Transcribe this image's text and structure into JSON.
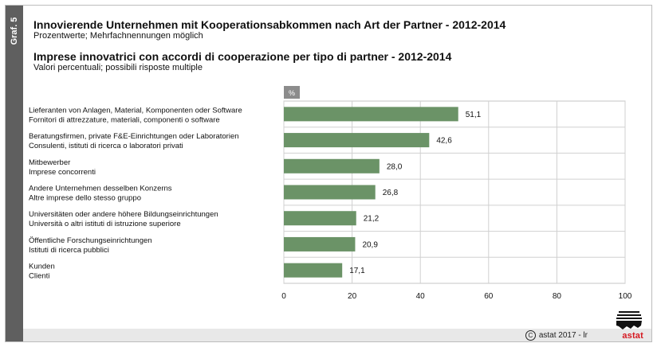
{
  "graph_label": "Graf. 5",
  "title_de": "Innovierende Unternehmen mit Kooperationsabkommen nach Art der Partner - 2012-2014",
  "subtitle_de": "Prozentwerte; Mehrfachnennungen möglich",
  "title_it": "Imprese innovatrici con accordi di cooperazione per tipo di partner - 2012-2014",
  "subtitle_it": "Valori percentuali; possibili risposte multiple",
  "footer": {
    "copyright_symbol": "C",
    "copyright_text": "astat 2017 - lr",
    "logo_text": "astat"
  },
  "colors": {
    "bar": "#6b9367",
    "sidebar": "#5f5f5f",
    "unit_box": "#8c8c8c",
    "logo": "#d51820"
  },
  "chart_data": {
    "type": "bar",
    "orientation": "horizontal",
    "unit_label": "%",
    "categories": [
      [
        "Lieferanten von Anlagen, Material, Komponenten oder Software",
        "Fornitori di attrezzature, materiali, componenti o software"
      ],
      [
        "Beratungsfirmen, private F&E-Einrichtungen oder Laboratorien",
        "Consulenti, istituti di ricerca o laboratori privati"
      ],
      [
        "Mitbewerber",
        "Imprese concorrenti"
      ],
      [
        "Andere Unternehmen desselben Konzerns",
        "Altre imprese dello stesso gruppo"
      ],
      [
        "Universitäten oder andere höhere Bildungseinrichtungen",
        "Università o altri istituti di istruzione superiore"
      ],
      [
        "Öffentliche Forschungseinrichtungen",
        "Istituti di ricerca pubblici"
      ],
      [
        "Kunden",
        "Clienti"
      ]
    ],
    "values": [
      51.1,
      42.6,
      28.0,
      26.8,
      21.2,
      20.9,
      17.1
    ],
    "value_labels": [
      "51,1",
      "42,6",
      "28,0",
      "26,8",
      "21,2",
      "20,9",
      "17,1"
    ],
    "xlim": [
      0,
      100
    ],
    "xticks": [
      0,
      20,
      40,
      60,
      80,
      100
    ],
    "grid": true
  }
}
